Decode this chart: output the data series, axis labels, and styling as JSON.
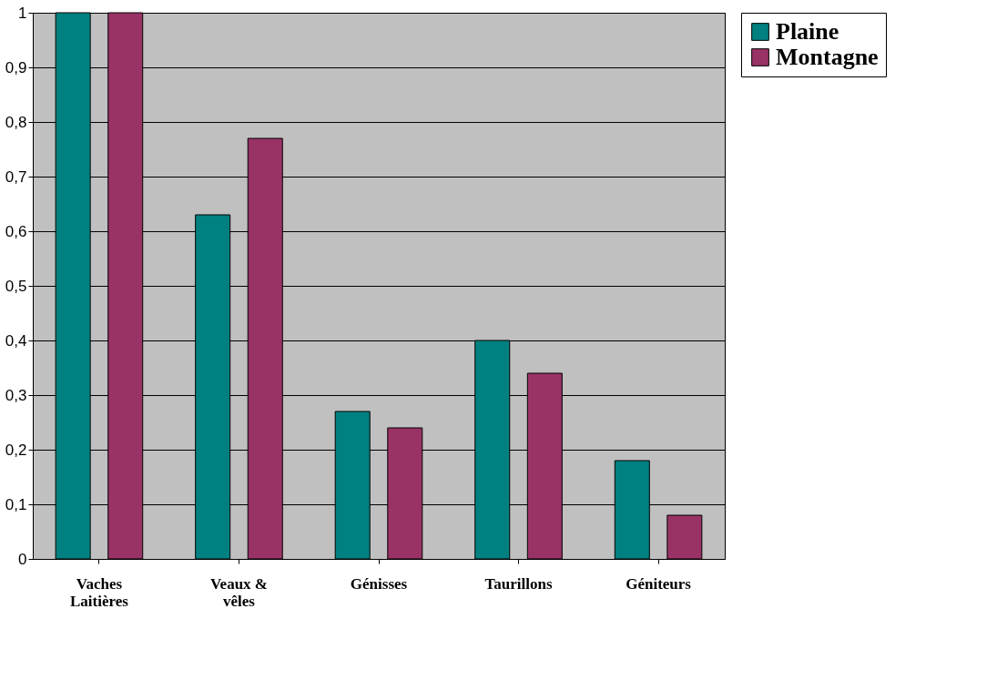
{
  "chart_data": {
    "type": "bar",
    "categories": [
      "Vaches Laitières",
      "Veaux & vêles",
      "Génisses",
      "Taurillons",
      "Géniteurs"
    ],
    "series": [
      {
        "name": "Plaine",
        "color": "#008080",
        "values": [
          1.0,
          0.63,
          0.27,
          0.4,
          0.18
        ]
      },
      {
        "name": "Montagne",
        "color": "#993366",
        "values": [
          1.0,
          0.77,
          0.24,
          0.34,
          0.08
        ]
      }
    ],
    "ylim": [
      0,
      1
    ],
    "yticks": [
      0,
      {
        "value": 0.1,
        "label": "0,1"
      },
      {
        "value": 0.2,
        "label": "0,2"
      },
      {
        "value": 0.3,
        "label": "0,3"
      },
      {
        "value": 0.4,
        "label": "0,4"
      },
      {
        "value": 0.5,
        "label": "0,5"
      },
      {
        "value": 0.6,
        "label": "0,6"
      },
      {
        "value": 0.7,
        "label": "0,7"
      },
      {
        "value": 0.8,
        "label": "0,8"
      },
      {
        "value": 0.9,
        "label": "0,9"
      },
      1
    ],
    "grid": "y",
    "legend": "right"
  }
}
